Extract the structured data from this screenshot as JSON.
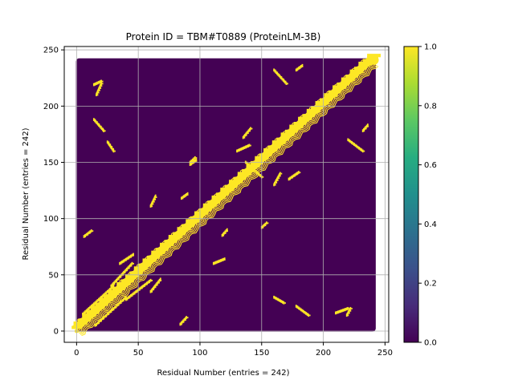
{
  "chart_data": {
    "type": "heatmap",
    "title": "Protein ID = TBM#T0889 (ProteinLM-3B)",
    "xlabel": "Residual Number (entries = 242)",
    "ylabel": "Residual Number (entries = 242)",
    "n": 242,
    "xlim": [
      -10,
      253
    ],
    "ylim": [
      -10,
      253
    ],
    "xticks": [
      0,
      50,
      100,
      150,
      200,
      250
    ],
    "yticks": [
      0,
      50,
      100,
      150,
      200,
      250
    ],
    "grid": true,
    "colorbar": {
      "cmap": "viridis",
      "range": [
        0,
        1
      ],
      "ticks": [
        "0.0",
        "0.2",
        "0.4",
        "0.6",
        "0.8",
        "1.0"
      ]
    },
    "contact_value": 1.0,
    "background_value": 0.0,
    "diagonal_band_halfwidth": 4,
    "contact_segments": [
      {
        "i": [
          5,
          30
        ],
        "j": [
          15,
          40
        ]
      },
      {
        "i": [
          15,
          40
        ],
        "j": [
          5,
          30
        ]
      },
      {
        "i": [
          40,
          60
        ],
        "j": [
          28,
          45
        ]
      },
      {
        "i": [
          28,
          45
        ],
        "j": [
          40,
          60
        ]
      },
      {
        "i": [
          84,
          89
        ],
        "j": [
          6,
          12
        ]
      },
      {
        "i": [
          6,
          12
        ],
        "j": [
          84,
          89
        ]
      },
      {
        "i": [
          14,
          22
        ],
        "j": [
          188,
          178
        ]
      },
      {
        "i": [
          188,
          178
        ],
        "j": [
          14,
          22
        ]
      },
      {
        "i": [
          30,
          25
        ],
        "j": [
          160,
          168
        ]
      },
      {
        "i": [
          160,
          168
        ],
        "j": [
          30,
          25
        ]
      },
      {
        "i": [
          130,
          140
        ],
        "j": [
          160,
          165
        ]
      },
      {
        "i": [
          160,
          165
        ],
        "j": [
          130,
          140
        ]
      },
      {
        "i": [
          150,
          154
        ],
        "j": [
          92,
          96
        ]
      },
      {
        "i": [
          92,
          96
        ],
        "j": [
          150,
          154
        ]
      },
      {
        "i": [
          135,
          141
        ],
        "j": [
          172,
          180
        ]
      },
      {
        "i": [
          172,
          180
        ],
        "j": [
          135,
          141
        ]
      },
      {
        "i": [
          118,
          122
        ],
        "j": [
          85,
          90
        ]
      },
      {
        "i": [
          85,
          90
        ],
        "j": [
          118,
          122
        ]
      },
      {
        "i": [
          16,
          20
        ],
        "j": [
          210,
          220
        ]
      },
      {
        "i": [
          210,
          220
        ],
        "j": [
          16,
          20
        ]
      },
      {
        "i": [
          232,
          236
        ],
        "j": [
          178,
          183
        ]
      },
      {
        "i": [
          178,
          183
        ],
        "j": [
          232,
          236
        ]
      },
      {
        "i": [
          160,
          170
        ],
        "j": [
          232,
          220
        ]
      },
      {
        "i": [
          232,
          220
        ],
        "j": [
          160,
          170
        ]
      },
      {
        "i": [
          60,
          68
        ],
        "j": [
          35,
          46
        ]
      },
      {
        "i": [
          35,
          46
        ],
        "j": [
          60,
          68
        ]
      },
      {
        "i": [
          150,
          145
        ],
        "j": [
          137,
          142
        ]
      },
      {
        "i": [
          137,
          142
        ],
        "j": [
          150,
          145
        ]
      },
      {
        "i": [
          111,
          120
        ],
        "j": [
          60,
          64
        ]
      },
      {
        "i": [
          60,
          64
        ],
        "j": [
          111,
          120
        ]
      },
      {
        "i": [
          92,
          97
        ],
        "j": [
          148,
          152
        ]
      },
      {
        "i": [
          14,
          20
        ],
        "j": [
          219,
          222
        ]
      },
      {
        "i": [
          219,
          222
        ],
        "j": [
          14,
          20
        ]
      }
    ],
    "corner_point": {
      "x": 241,
      "y": 241
    },
    "origin_point": {
      "x": 0,
      "y": 0
    }
  }
}
